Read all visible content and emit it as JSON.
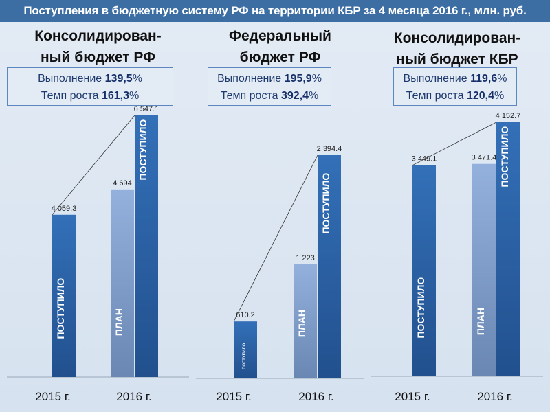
{
  "title": "Поступления в бюджетную систему РФ на территории КБР за 4 месяца 2016 г., млн. руб.",
  "panels": [
    {
      "title_lines": [
        "Консолидирован-",
        "ный бюджет РФ"
      ],
      "execution_label": "Выполнение",
      "execution_value": "139,5",
      "growth_label": "Темп роста",
      "growth_value": "161,3",
      "pct": "%"
    },
    {
      "title_lines": [
        "Федеральный",
        "бюджет РФ"
      ],
      "execution_label": "Выполнение",
      "execution_value": "195,9",
      "growth_label": "Темп роста",
      "growth_value": "392,4",
      "pct": "%"
    },
    {
      "title_lines": [
        "Консолидирован-",
        "ный бюджет КБР"
      ],
      "execution_label": "Выполнение",
      "execution_value": "119,6",
      "growth_label": "Темп роста",
      "growth_value": "120,4",
      "pct": "%"
    }
  ],
  "chart_data": [
    {
      "type": "bar",
      "title": "Консолидированный бюджет РФ",
      "categories": [
        "2015 г.",
        "2016 г."
      ],
      "bars": [
        {
          "category": "2015 г.",
          "series": "ПОСТУПИЛО",
          "value": 4059.3,
          "label": "4 059.3"
        },
        {
          "category": "2016 г.",
          "series": "ПЛАН",
          "value": 4694,
          "label": "4 694"
        },
        {
          "category": "2016 г.",
          "series": "ПОСТУПИЛО",
          "value": 6547.1,
          "label": "6 547.1"
        }
      ]
    },
    {
      "type": "bar",
      "title": "Федеральный бюджет РФ",
      "categories": [
        "2015 г.",
        "2016 г."
      ],
      "bars": [
        {
          "category": "2015 г.",
          "series": "ПОСТУПИЛО",
          "value": 610.2,
          "label": "610.2"
        },
        {
          "category": "2016 г.",
          "series": "ПЛАН",
          "value": 1223,
          "label": "1 223"
        },
        {
          "category": "2016 г.",
          "series": "ПОСТУПИЛО",
          "value": 2394.4,
          "label": "2 394.4"
        }
      ]
    },
    {
      "type": "bar",
      "title": "Консолидированный бюджет КБР",
      "categories": [
        "2015 г.",
        "2016 г."
      ],
      "bars": [
        {
          "category": "2015 г.",
          "series": "ПОСТУПИЛО",
          "value": 3449.1,
          "label": "3 449.1"
        },
        {
          "category": "2016 г.",
          "series": "ПЛАН",
          "value": 3471.4,
          "label": "3 471.4"
        },
        {
          "category": "2016 г.",
          "series": "ПОСТУПИЛО",
          "value": 4152.7,
          "label": "4 152.7"
        }
      ]
    }
  ],
  "colors": {
    "actual": "#2e64a8",
    "plan": "#8fabd6",
    "title_bar": "#3c6ea4"
  }
}
